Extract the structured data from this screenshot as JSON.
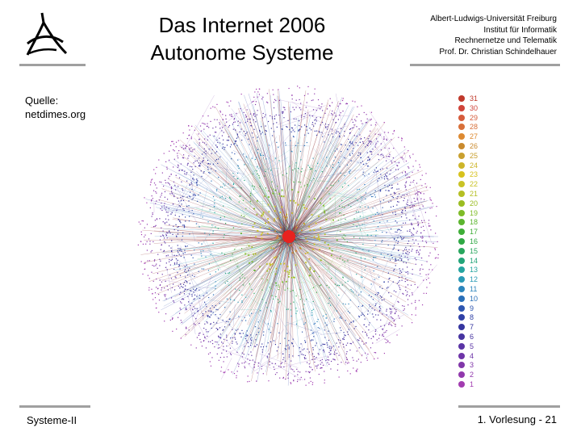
{
  "title": {
    "line1": "Das Internet 2006",
    "line2": "Autonome Systeme"
  },
  "affiliation": {
    "line1": "Albert-Ludwigs-Universität Freiburg",
    "line2": "Institut für Informatik",
    "line3": "Rechnernetze und Telematik",
    "line4": "Prof. Dr. Christian Schindelhauer"
  },
  "source": {
    "line1": "Quelle:",
    "line2": "netdimes.org"
  },
  "legend": {
    "levels": [
      "31",
      "30",
      "29",
      "28",
      "27",
      "26",
      "25",
      "24",
      "23",
      "22",
      "21",
      "20",
      "19",
      "18",
      "17",
      "16",
      "15",
      "14",
      "13",
      "12",
      "11",
      "10",
      "9",
      "8",
      "7",
      "6",
      "5",
      "4",
      "3",
      "2",
      "1"
    ],
    "colors": [
      "#c0392b",
      "#d0443a",
      "#d65c3c",
      "#d8703a",
      "#dd8a32",
      "#c98a2e",
      "#c9a030",
      "#cdb52a",
      "#d7c21d",
      "#c9c326",
      "#b5bf23",
      "#9bbd22",
      "#7fbc28",
      "#5cb52f",
      "#3fae38",
      "#2fa844",
      "#29a65e",
      "#23a479",
      "#25a4a0",
      "#2a9ab5",
      "#2c85bc",
      "#2a6fb8",
      "#2e56b0",
      "#3041a6",
      "#35359f",
      "#4634a0",
      "#5a34a5",
      "#6e35a8",
      "#8137a9",
      "#9139ad",
      "#a23cb0"
    ]
  },
  "footer": {
    "left": "Systeme-II",
    "right": "1. Vorlesung - 21"
  },
  "logo": {
    "icon": "university-logo-icon"
  }
}
